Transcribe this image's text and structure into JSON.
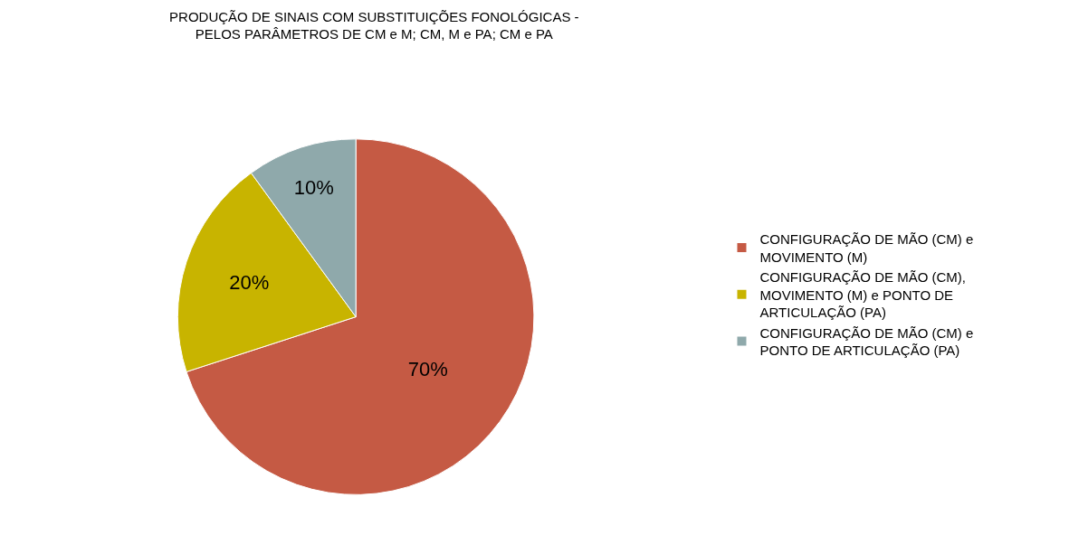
{
  "chart_data": {
    "type": "pie",
    "title": "PRODUÇÃO DE SINAIS COM SUBSTITUIÇÕES FONOLÓGICAS -\nPELOS PARÂMETROS DE CM e M; CM, M e PA; CM e PA",
    "categories": [
      "CONFIGURAÇÃO DE MÃO (CM) e MOVIMENTO (M)",
      "CONFIGURAÇÃO DE MÃO (CM), MOVIMENTO (M) e PONTO DE ARTICULAÇÃO (PA)",
      "CONFIGURAÇÃO DE MÃO (CM) e PONTO DE ARTICULAÇÃO (PA)"
    ],
    "values": [
      70,
      20,
      10
    ],
    "colors": [
      "#c55a44",
      "#c8b400",
      "#8fa9ab"
    ],
    "value_labels": [
      "70%",
      "20%",
      "10%"
    ],
    "legend": "right"
  }
}
